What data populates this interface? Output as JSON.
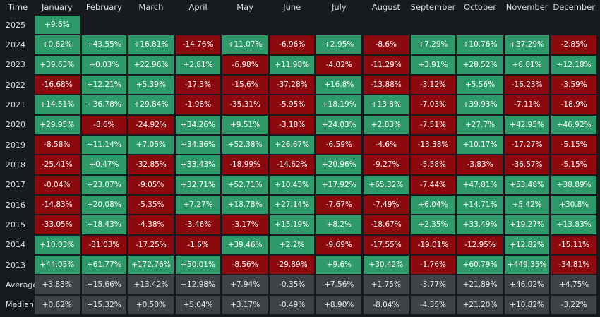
{
  "header_label": "Time",
  "months": [
    "January",
    "February",
    "March",
    "April",
    "May",
    "June",
    "July",
    "August",
    "September",
    "October",
    "November",
    "December"
  ],
  "colors": {
    "background": "#171a1f",
    "positive": "#2e9a6a",
    "negative": "#8c0a0d",
    "stat": "#3f4247"
  },
  "chart_data": {
    "type": "heatmap",
    "columns": [
      "January",
      "February",
      "March",
      "April",
      "May",
      "June",
      "July",
      "August",
      "September",
      "October",
      "November",
      "December"
    ],
    "rows": [
      {
        "label": "2025",
        "values": [
          "+9.6%",
          null,
          null,
          null,
          null,
          null,
          null,
          null,
          null,
          null,
          null,
          null
        ]
      },
      {
        "label": "2024",
        "values": [
          "+0.62%",
          "+43.55%",
          "+16.81%",
          "-14.76%",
          "+11.07%",
          "-6.96%",
          "+2.95%",
          "-8.6%",
          "+7.29%",
          "+10.76%",
          "+37.29%",
          "-2.85%"
        ]
      },
      {
        "label": "2023",
        "values": [
          "+39.63%",
          "+0.03%",
          "+22.96%",
          "+2.81%",
          "-6.98%",
          "+11.98%",
          "-4.02%",
          "-11.29%",
          "+3.91%",
          "+28.52%",
          "+8.81%",
          "+12.18%"
        ]
      },
      {
        "label": "2022",
        "values": [
          "-16.68%",
          "+12.21%",
          "+5.39%",
          "-17.3%",
          "-15.6%",
          "-37.28%",
          "+16.8%",
          "-13.88%",
          "-3.12%",
          "+5.56%",
          "-16.23%",
          "-3.59%"
        ]
      },
      {
        "label": "2021",
        "values": [
          "+14.51%",
          "+36.78%",
          "+29.84%",
          "-1.98%",
          "-35.31%",
          "-5.95%",
          "+18.19%",
          "+13.8%",
          "-7.03%",
          "+39.93%",
          "-7.11%",
          "-18.9%"
        ]
      },
      {
        "label": "2020",
        "values": [
          "+29.95%",
          "-8.6%",
          "-24.92%",
          "+34.26%",
          "+9.51%",
          "-3.18%",
          "+24.03%",
          "+2.83%",
          "-7.51%",
          "+27.7%",
          "+42.95%",
          "+46.92%"
        ]
      },
      {
        "label": "2019",
        "values": [
          "-8.58%",
          "+11.14%",
          "+7.05%",
          "+34.36%",
          "+52.38%",
          "+26.67%",
          "-6.59%",
          "-4.6%",
          "-13.38%",
          "+10.17%",
          "-17.27%",
          "-5.15%"
        ]
      },
      {
        "label": "2018",
        "values": [
          "-25.41%",
          "+0.47%",
          "-32.85%",
          "+33.43%",
          "-18.99%",
          "-14.62%",
          "+20.96%",
          "-9.27%",
          "-5.58%",
          "-3.83%",
          "-36.57%",
          "-5.15%"
        ]
      },
      {
        "label": "2017",
        "values": [
          "-0.04%",
          "+23.07%",
          "-9.05%",
          "+32.71%",
          "+52.71%",
          "+10.45%",
          "+17.92%",
          "+65.32%",
          "-7.44%",
          "+47.81%",
          "+53.48%",
          "+38.89%"
        ]
      },
      {
        "label": "2016",
        "values": [
          "-14.83%",
          "+20.08%",
          "-5.35%",
          "+7.27%",
          "+18.78%",
          "+27.14%",
          "-7.67%",
          "-7.49%",
          "+6.04%",
          "+14.71%",
          "+5.42%",
          "+30.8%"
        ]
      },
      {
        "label": "2015",
        "values": [
          "-33.05%",
          "+18.43%",
          "-4.38%",
          "-3.46%",
          "-3.17%",
          "+15.19%",
          "+8.2%",
          "-18.67%",
          "+2.35%",
          "+33.49%",
          "+19.27%",
          "+13.83%"
        ]
      },
      {
        "label": "2014",
        "values": [
          "+10.03%",
          "-31.03%",
          "-17.25%",
          "-1.6%",
          "+39.46%",
          "+2.2%",
          "-9.69%",
          "-17.55%",
          "-19.01%",
          "-12.95%",
          "+12.82%",
          "-15.11%"
        ]
      },
      {
        "label": "2013",
        "values": [
          "+44.05%",
          "+61.77%",
          "+172.76%",
          "+50.01%",
          "-8.56%",
          "-29.89%",
          "+9.6%",
          "+30.42%",
          "-1.76%",
          "+60.79%",
          "+449.35%",
          "-34.81%"
        ]
      }
    ],
    "summary_rows": [
      {
        "label": "Average",
        "values": [
          "+3.83%",
          "+15.66%",
          "+13.42%",
          "+12.98%",
          "+7.94%",
          "-0.35%",
          "+7.56%",
          "+1.75%",
          "-3.77%",
          "+21.89%",
          "+46.02%",
          "+4.75%"
        ]
      },
      {
        "label": "Median",
        "values": [
          "+0.62%",
          "+15.32%",
          "+0.50%",
          "+5.04%",
          "+3.17%",
          "-0.49%",
          "+8.90%",
          "-8.04%",
          "-4.35%",
          "+21.20%",
          "+10.82%",
          "-3.22%"
        ]
      }
    ]
  }
}
